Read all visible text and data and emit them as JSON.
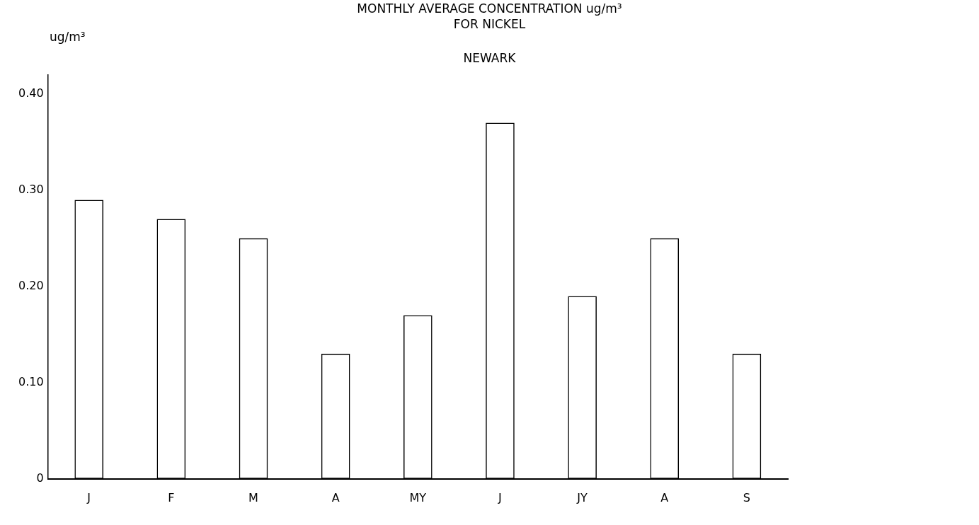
{
  "chart_data": {
    "type": "bar",
    "title": "MONTHLY AVERAGE CONCENTRATION ug/m³",
    "subtitle": "FOR NICKEL",
    "annotations": [
      "NEWARK"
    ],
    "ylabel": "ug/m³",
    "categories": [
      "J",
      "F",
      "M",
      "A",
      "MY",
      "J",
      "JY",
      "A",
      "S"
    ],
    "series": [
      {
        "color": "#000000",
        "values": [
          0.29,
          0.27,
          0.25,
          0.13,
          0.17,
          0.37,
          0.19,
          0.25,
          0.13
        ]
      }
    ],
    "ylim": [
      0,
      0.42
    ],
    "yticks": [
      0,
      {
        "value": 0.1,
        "label": "0.10"
      },
      {
        "value": 0.2,
        "label": "0.20"
      },
      {
        "value": 0.3,
        "label": "0.30"
      },
      {
        "value": 0.4,
        "label": "0.40"
      }
    ],
    "grid": false,
    "legend": false
  }
}
